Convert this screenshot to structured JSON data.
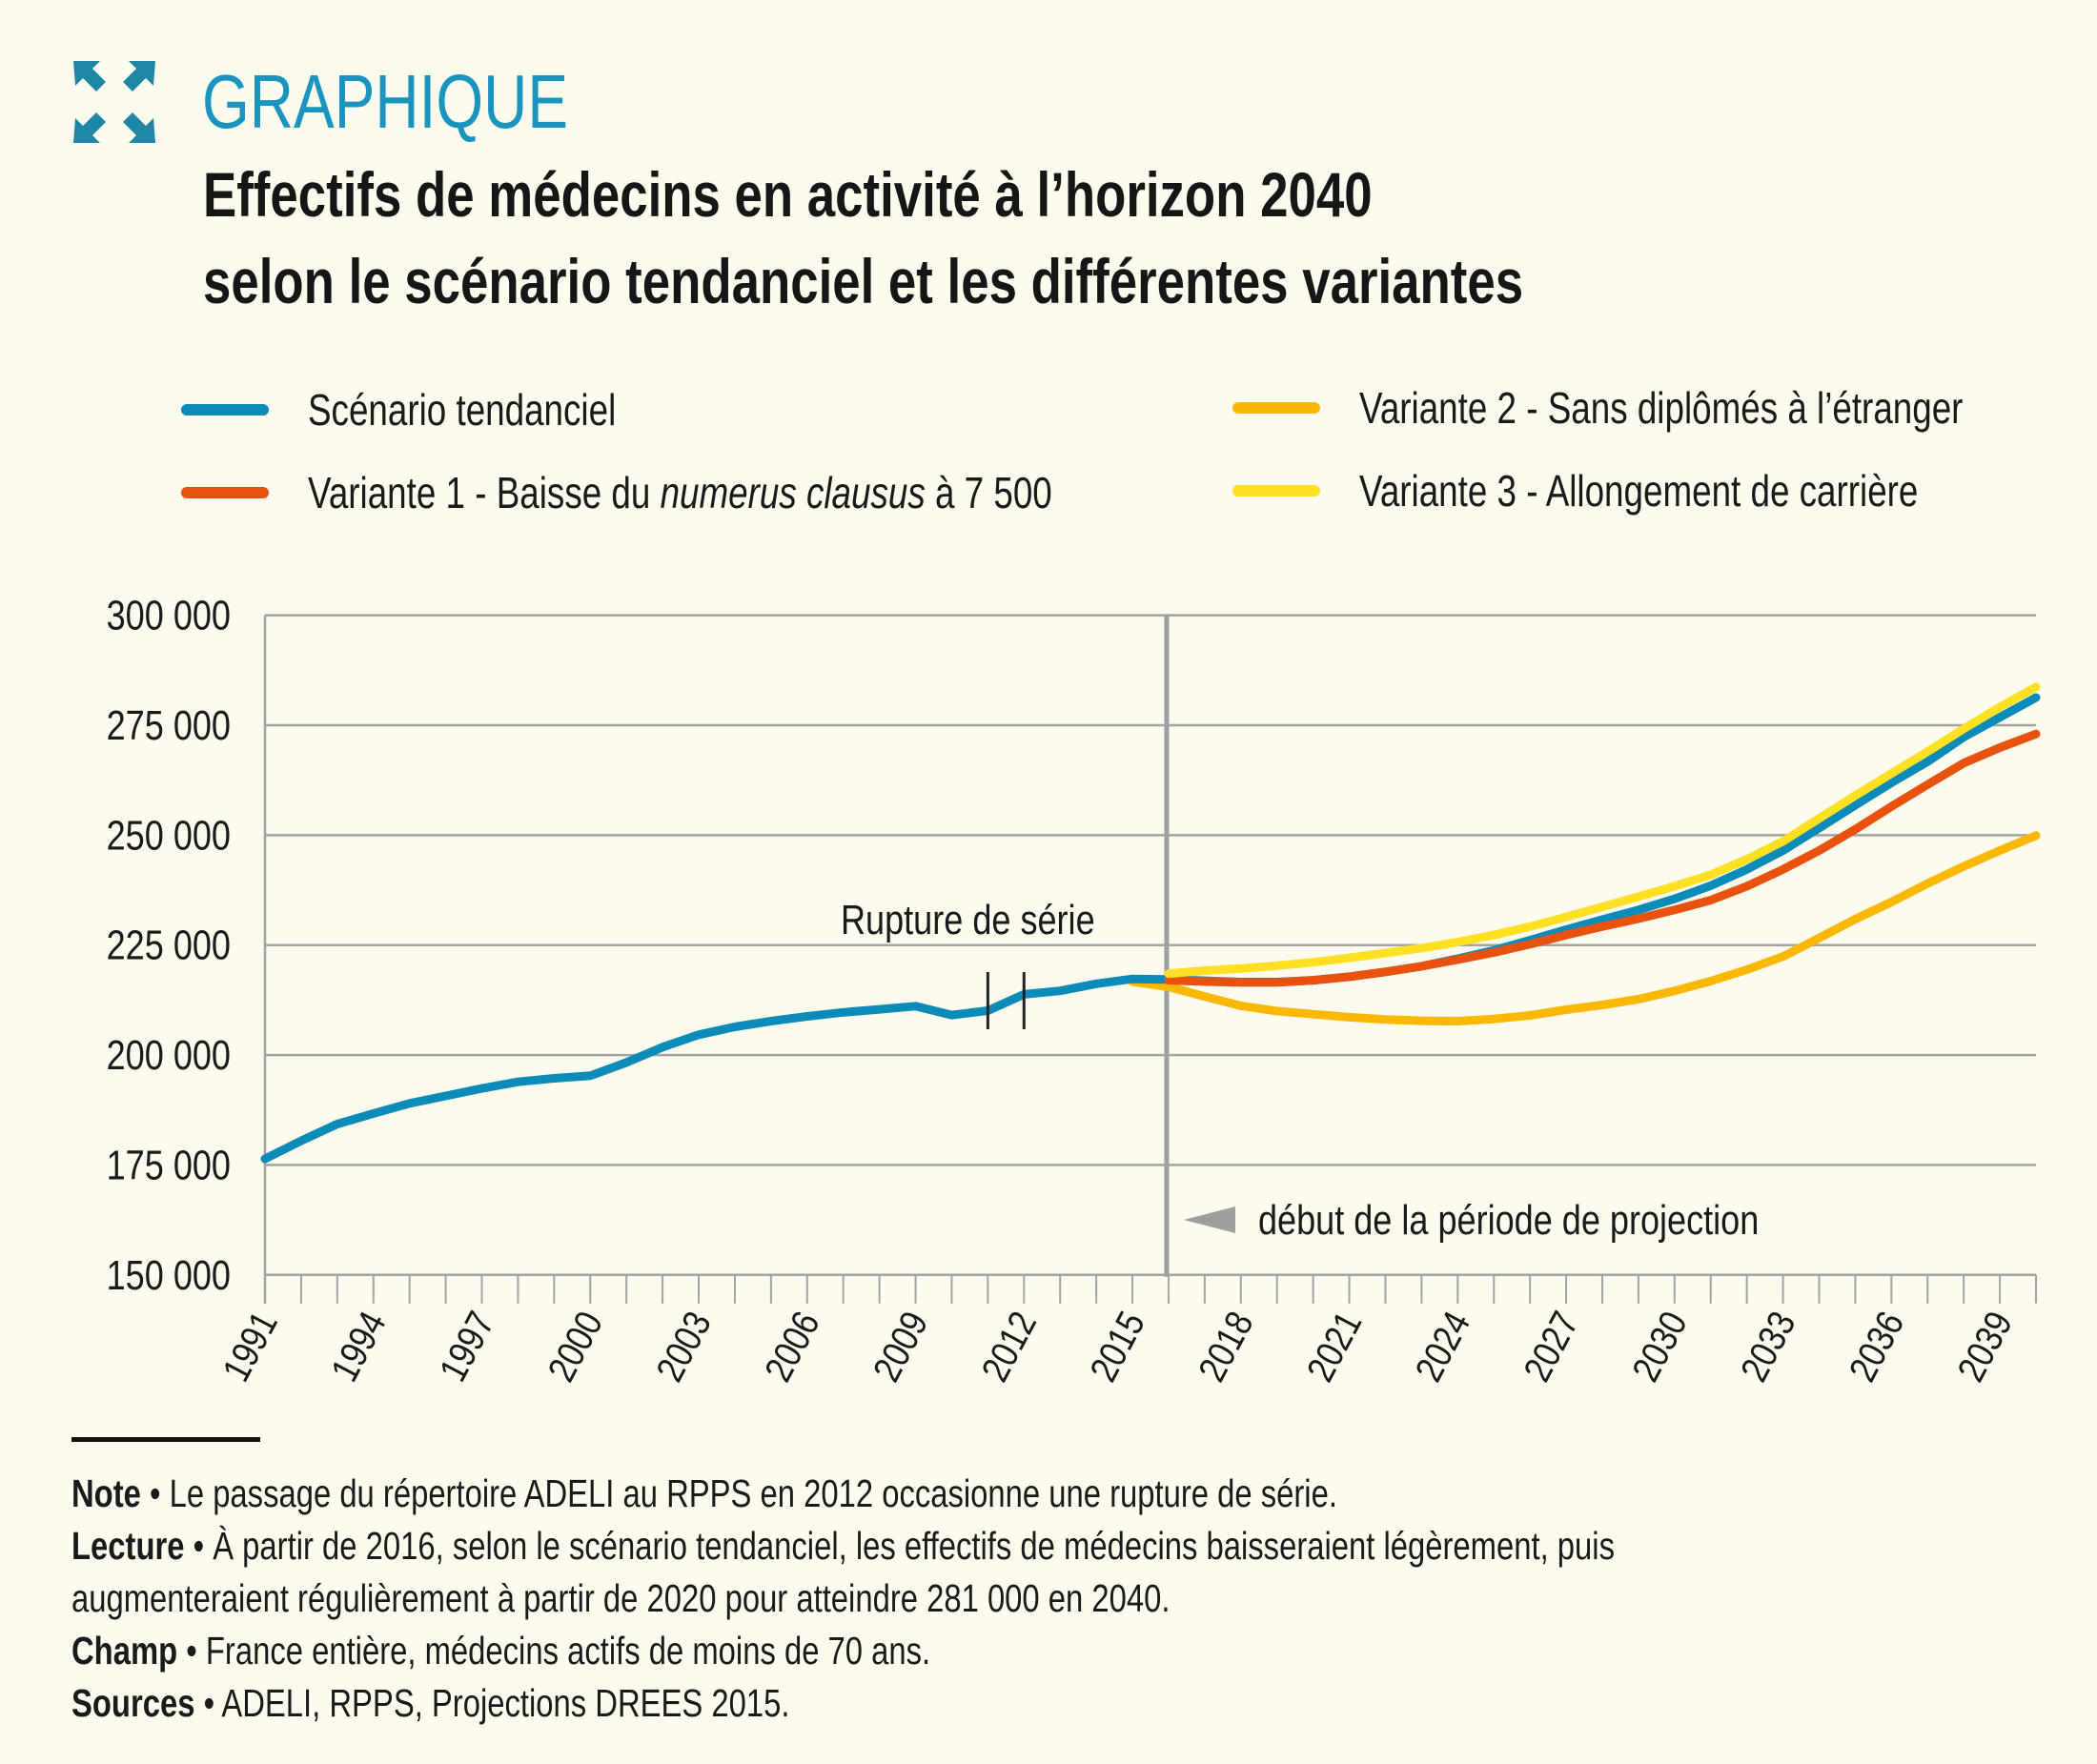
{
  "header": {
    "icon": "expand-arrows-icon",
    "kicker": "GRAPHIQUE",
    "title_line1": "Effectifs de médecins en activité à l’horizon 2040",
    "title_line2": "selon le scénario tendanciel et les différentes variantes"
  },
  "legend": [
    {
      "label_parts": [
        "Scénario tendanciel"
      ],
      "color": "#0a8bb8"
    },
    {
      "label_parts": [
        "Variante 1 - Baisse du ",
        "numerus clausus",
        " à 7 500"
      ],
      "italic_index": 1,
      "color": "#e8520e"
    },
    {
      "label_parts": [
        "Variante 2 - Sans diplômés à l’étranger"
      ],
      "color": "#fbb800"
    },
    {
      "label_parts": [
        "Variante 3 - Allongement de carrière"
      ],
      "color": "#ffe022"
    }
  ],
  "annotations": {
    "series_break": "Rupture de série",
    "projection_start": "début de la période de projection",
    "projection_start_year": 2016,
    "series_break_years": [
      2011,
      2012
    ]
  },
  "chart_data": {
    "type": "line",
    "title": "Effectifs de médecins en activité à l’horizon 2040 selon le scénario tendanciel et les différentes variantes",
    "xlabel": "",
    "ylabel": "",
    "xlim": [
      1991,
      2040
    ],
    "ylim": [
      150000,
      300000
    ],
    "yticks": [
      150000,
      175000,
      200000,
      225000,
      250000,
      275000,
      300000
    ],
    "ytick_labels": [
      "150 000",
      "175 000",
      "200 000",
      "225 000",
      "250 000",
      "275 000",
      "300 000"
    ],
    "xtick_labels": [
      "1991",
      "1994",
      "1997",
      "2000",
      "2003",
      "2006",
      "2009",
      "2012",
      "2015",
      "2018",
      "2021",
      "2024",
      "2027",
      "2030",
      "2033",
      "2036",
      "2039"
    ],
    "grid": true,
    "legend_position": "top",
    "series": [
      {
        "name": "Scénario tendanciel",
        "color": "#0a8bb8",
        "x": [
          1991,
          1992,
          1993,
          1994,
          1995,
          1996,
          1997,
          1998,
          1999,
          2000,
          2001,
          2002,
          2003,
          2004,
          2005,
          2006,
          2007,
          2008,
          2009,
          2010,
          2011,
          2012,
          2013,
          2014,
          2015,
          2016,
          2017,
          2018,
          2019,
          2020,
          2021,
          2022,
          2023,
          2024,
          2025,
          2026,
          2027,
          2028,
          2029,
          2030,
          2031,
          2032,
          2033,
          2034,
          2035,
          2036,
          2037,
          2038,
          2039,
          2040
        ],
        "values": [
          176400,
          180500,
          184300,
          186700,
          189000,
          190700,
          192400,
          193900,
          194700,
          195300,
          198300,
          201800,
          204600,
          206400,
          207700,
          208800,
          209700,
          210400,
          211100,
          209100,
          210100,
          213800,
          214600,
          216200,
          217300,
          217200,
          216900,
          216600,
          216600,
          217000,
          217800,
          218900,
          220200,
          221900,
          223800,
          226100,
          228500,
          230800,
          233000,
          235500,
          238500,
          242200,
          246500,
          251600,
          256800,
          261900,
          266700,
          272300,
          276800,
          281300
        ]
      },
      {
        "name": "Variante 1 - Baisse du numerus clausus à 7 500",
        "color": "#e8520e",
        "x": [
          2016,
          2017,
          2018,
          2019,
          2020,
          2021,
          2022,
          2023,
          2024,
          2025,
          2026,
          2027,
          2028,
          2029,
          2030,
          2031,
          2032,
          2033,
          2034,
          2035,
          2036,
          2037,
          2038,
          2039,
          2040
        ],
        "values": [
          217000,
          216700,
          216500,
          216500,
          217000,
          217800,
          218900,
          220200,
          221700,
          223300,
          225200,
          227300,
          229200,
          231000,
          233000,
          235200,
          238400,
          242200,
          246500,
          251300,
          256500,
          261500,
          266400,
          269900,
          273000
        ]
      },
      {
        "name": "Variante 2 - Sans diplômés à l’étranger",
        "color": "#fbb800",
        "x": [
          2015,
          2016,
          2017,
          2018,
          2019,
          2020,
          2021,
          2022,
          2023,
          2024,
          2025,
          2026,
          2027,
          2028,
          2029,
          2030,
          2031,
          2032,
          2033,
          2034,
          2035,
          2036,
          2037,
          2038,
          2039,
          2040
        ],
        "values": [
          216700,
          215500,
          213300,
          211200,
          210000,
          209300,
          208600,
          208100,
          207800,
          207700,
          208200,
          209000,
          210300,
          211400,
          212700,
          214600,
          216800,
          219400,
          222400,
          226600,
          230900,
          234800,
          239000,
          242900,
          246500,
          249900
        ]
      },
      {
        "name": "Variante 3 - Allongement de carrière",
        "color": "#ffe022",
        "x": [
          2016,
          2017,
          2018,
          2019,
          2020,
          2021,
          2022,
          2023,
          2024,
          2025,
          2026,
          2027,
          2028,
          2029,
          2030,
          2031,
          2032,
          2033,
          2034,
          2035,
          2036,
          2037,
          2038,
          2039,
          2040
        ],
        "values": [
          218500,
          219200,
          219700,
          220300,
          221100,
          222100,
          223200,
          224300,
          225700,
          227300,
          229200,
          231400,
          233700,
          236000,
          238400,
          241000,
          244500,
          248600,
          253800,
          259000,
          264000,
          269000,
          274200,
          279100,
          283700
        ]
      }
    ]
  },
  "notes": {
    "note_label": "Note",
    "note_text": " • Le passage du répertoire ADELI au RPPS en 2012 occasionne une rupture de série.",
    "lecture_label": "Lecture",
    "lecture_text": " • À partir de 2016, selon le scénario tendanciel, les effectifs de médecins baisseraient légèrement, puis",
    "lecture_text2": "augmenteraient régulièrement à partir de 2020 pour atteindre 281 000 en 2040.",
    "champ_label": "Champ",
    "champ_text": " • France entière, médecins actifs de moins de 70 ans.",
    "sources_label": "Sources",
    "sources_text": " • ADELI, RPPS, Projections DREES 2015."
  }
}
